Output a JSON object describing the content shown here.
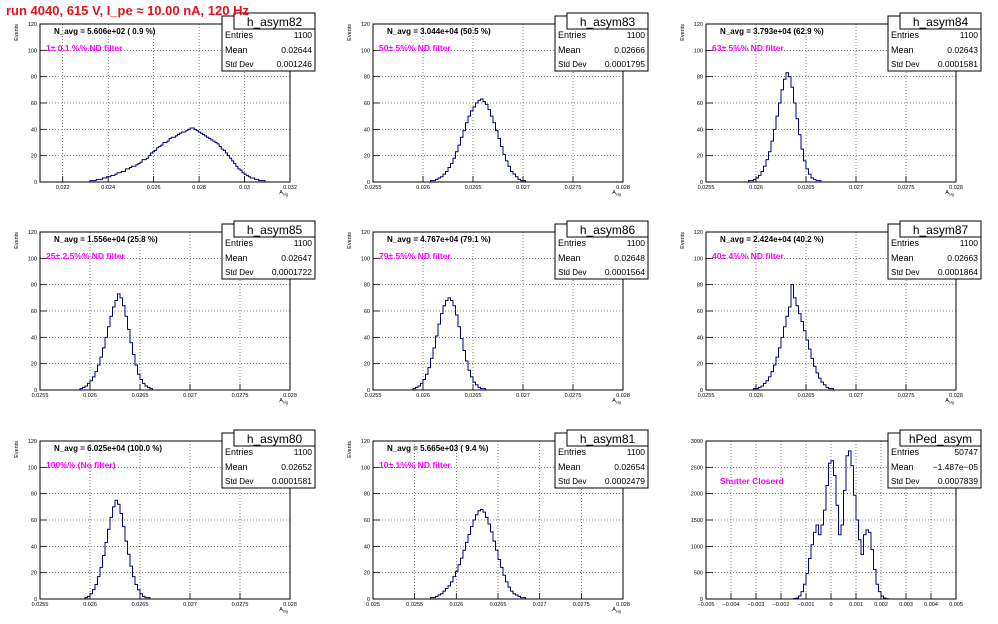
{
  "run_title": "run 4040,   615 V, I_pe ≈ 10.00 nA, 120 Hz",
  "colors": {
    "hist": "#00007a",
    "label": "#ff00ff",
    "title": "#e8101c"
  },
  "chart_data": [
    {
      "type": "bar",
      "name": "h_asym82",
      "ylabel": "Events",
      "xlabel": "A_sig",
      "navg": "N_avg = 5.606e+02 ( 0.9 %)",
      "filter": "1± 0.1 %% ND filter",
      "stats": {
        "entries": "1100",
        "mean": "0.02644",
        "stddev": "0.001246"
      },
      "stat_labels": [
        "Entries",
        "Mean",
        "Std Dev"
      ],
      "xlim": [
        0.0315,
        0.032
      ],
      "ylim": [
        0,
        120
      ],
      "xticks": [
        "0.022",
        "0.024",
        "0.026",
        "0.028",
        "0.03",
        "0.032"
      ],
      "xtick_vals": [
        0.022,
        0.024,
        0.026,
        0.028,
        0.03,
        0.032
      ],
      "yticks": [
        "0",
        "20",
        "40",
        "60",
        "80",
        "100",
        "120"
      ],
      "x_range": [
        0.021,
        0.032
      ],
      "values": [
        0,
        0,
        0,
        0,
        0,
        0,
        0,
        0,
        0,
        0,
        0,
        0,
        0,
        0,
        0,
        0,
        0,
        0,
        0,
        0,
        0,
        0,
        0,
        0,
        1,
        1,
        1,
        2,
        2,
        2,
        3,
        3,
        4,
        4,
        5,
        5,
        6,
        7,
        7,
        8,
        8,
        10,
        10,
        11,
        12,
        12,
        13,
        14,
        15,
        17,
        17,
        18,
        20,
        22,
        23,
        24,
        26,
        27,
        28,
        30,
        30,
        31,
        33,
        34,
        34,
        35,
        36,
        37,
        38,
        38,
        39,
        40,
        41,
        41,
        40,
        39,
        38,
        37,
        36,
        35,
        34,
        33,
        32,
        31,
        30,
        29,
        27,
        25,
        24,
        22,
        20,
        18,
        16,
        14,
        12,
        10,
        9,
        7,
        6,
        5,
        4,
        3,
        3,
        2,
        2,
        1,
        1,
        1,
        0,
        0,
        0,
        0,
        0,
        0,
        0,
        0,
        0,
        0,
        0,
        0
      ]
    },
    {
      "type": "bar",
      "name": "h_asym83",
      "ylabel": "Events",
      "xlabel": "A_sig",
      "navg": "N_avg = 3.044e+04 (50.5 %)",
      "filter": "50± 5%% ND filter",
      "stats": {
        "entries": "1100",
        "mean": "0.02666",
        "stddev": "0.0001795"
      },
      "stat_labels": [
        "Entries",
        "Mean",
        "Std Dev"
      ],
      "ylim": [
        0,
        120
      ],
      "xticks": [
        "0.0255",
        "0.026",
        "0.0265",
        "0.027",
        "0.0275",
        "0.028"
      ],
      "xtick_vals": [
        0.0255,
        0.026,
        0.0265,
        0.027,
        0.0275,
        0.028
      ],
      "yticks": [
        "0",
        "20",
        "40",
        "60",
        "80",
        "100",
        "120"
      ],
      "x_range": [
        0.0255,
        0.028
      ],
      "values": [
        0,
        0,
        0,
        0,
        0,
        0,
        0,
        0,
        0,
        0,
        0,
        0,
        0,
        0,
        0,
        0,
        0,
        0,
        0,
        0,
        0,
        0,
        0,
        1,
        1,
        2,
        3,
        4,
        6,
        8,
        11,
        14,
        18,
        23,
        28,
        34,
        39,
        45,
        50,
        54,
        57,
        60,
        62,
        63,
        61,
        59,
        55,
        50,
        45,
        39,
        33,
        27,
        21,
        16,
        12,
        8,
        6,
        4,
        2,
        1,
        1,
        0,
        0,
        0,
        0,
        0,
        0,
        0,
        0,
        0,
        0,
        0,
        0,
        0,
        0,
        0,
        0,
        0,
        0,
        0,
        0,
        0,
        0,
        0,
        0,
        0,
        0,
        0,
        0,
        0,
        0,
        0,
        0,
        0,
        0,
        0,
        0,
        0,
        0,
        0
      ]
    },
    {
      "type": "bar",
      "name": "h_asym84",
      "ylabel": "Events",
      "xlabel": "A_sig",
      "navg": "N_avg = 3.793e+04 (62.9 %)",
      "filter": "63± 5%% ND filter",
      "stats": {
        "entries": "1100",
        "mean": "0.02643",
        "stddev": "0.0001581"
      },
      "stat_labels": [
        "Entries",
        "Mean",
        "Std Dev"
      ],
      "ylim": [
        0,
        120
      ],
      "xticks": [
        "0.0255",
        "0.026",
        "0.0265",
        "0.027",
        "0.0275",
        "0.028"
      ],
      "xtick_vals": [
        0.0255,
        0.026,
        0.0265,
        0.027,
        0.0275,
        0.028
      ],
      "yticks": [
        "0",
        "20",
        "40",
        "60",
        "80",
        "100",
        "120"
      ],
      "x_range": [
        0.0255,
        0.028
      ],
      "values": [
        0,
        0,
        0,
        0,
        0,
        0,
        0,
        0,
        0,
        0,
        0,
        0,
        0,
        0,
        0,
        0,
        0,
        1,
        1,
        2,
        3,
        5,
        8,
        12,
        17,
        23,
        31,
        40,
        50,
        60,
        70,
        78,
        83,
        80,
        72,
        60,
        48,
        36,
        25,
        16,
        10,
        6,
        3,
        2,
        1,
        1,
        0,
        0,
        0,
        0,
        0,
        0,
        0,
        0,
        0,
        0,
        0,
        0,
        0,
        0,
        0,
        0,
        0,
        0,
        0,
        0,
        0,
        0,
        0,
        0,
        0,
        0,
        0,
        0,
        0,
        0,
        0,
        0,
        0,
        0,
        0,
        0,
        0,
        0,
        0,
        0,
        0,
        0,
        0,
        0,
        0,
        0,
        0,
        0,
        0,
        0,
        0,
        0,
        0,
        0
      ]
    },
    {
      "type": "bar",
      "name": "h_asym85",
      "ylabel": "Events",
      "xlabel": "A_sig",
      "navg": "N_avg = 1.556e+04 (25.8 %)",
      "filter": "25± 2.5%% ND filter",
      "stats": {
        "entries": "1100",
        "mean": "0.02647",
        "stddev": "0.0001722"
      },
      "stat_labels": [
        "Entries",
        "Mean",
        "Std Dev"
      ],
      "ylim": [
        0,
        120
      ],
      "xticks": [
        "0.0255",
        "0.026",
        "0.0265",
        "0.027",
        "0.0275",
        "0.028"
      ],
      "xtick_vals": [
        0.0255,
        0.026,
        0.0265,
        0.027,
        0.0275,
        0.028
      ],
      "yticks": [
        "0",
        "20",
        "40",
        "60",
        "80",
        "100",
        "120"
      ],
      "x_range": [
        0.0255,
        0.028
      ],
      "values": [
        0,
        0,
        0,
        0,
        0,
        0,
        0,
        0,
        0,
        0,
        0,
        0,
        0,
        0,
        0,
        0,
        1,
        2,
        3,
        5,
        7,
        10,
        14,
        19,
        25,
        32,
        40,
        48,
        56,
        63,
        68,
        73,
        70,
        64,
        56,
        46,
        36,
        27,
        19,
        12,
        8,
        5,
        3,
        2,
        1,
        0,
        0,
        0,
        0,
        0,
        0,
        0,
        0,
        0,
        0,
        0,
        0,
        0,
        0,
        0,
        0,
        0,
        0,
        0,
        0,
        0,
        0,
        0,
        0,
        0,
        0,
        0,
        0,
        0,
        0,
        0,
        0,
        0,
        0,
        0,
        0,
        0,
        0,
        0,
        0,
        0,
        0,
        0,
        0,
        0,
        0,
        0,
        0,
        0,
        0,
        0,
        0,
        0,
        0,
        0
      ]
    },
    {
      "type": "bar",
      "name": "h_asym86",
      "ylabel": "Events",
      "xlabel": "A_sig",
      "navg": "N_avg = 4.767e+04 (79.1 %)",
      "filter": "79± 5%% ND filter",
      "stats": {
        "entries": "1100",
        "mean": "0.02648",
        "stddev": "0.0001564"
      },
      "stat_labels": [
        "Entries",
        "Mean",
        "Std Dev"
      ],
      "ylim": [
        0,
        120
      ],
      "xticks": [
        "0.0255",
        "0.026",
        "0.0265",
        "0.027",
        "0.0275",
        "0.028"
      ],
      "xtick_vals": [
        0.0255,
        0.026,
        0.0265,
        0.027,
        0.0275,
        0.028
      ],
      "yticks": [
        "0",
        "20",
        "40",
        "60",
        "80",
        "100",
        "120"
      ],
      "x_range": [
        0.0255,
        0.028
      ],
      "values": [
        0,
        0,
        0,
        0,
        0,
        0,
        0,
        0,
        0,
        0,
        0,
        0,
        0,
        0,
        0,
        0,
        1,
        2,
        3,
        5,
        8,
        12,
        17,
        24,
        32,
        41,
        50,
        58,
        64,
        68,
        70,
        68,
        64,
        57,
        48,
        39,
        30,
        22,
        15,
        10,
        6,
        4,
        2,
        1,
        1,
        0,
        0,
        0,
        0,
        0,
        0,
        0,
        0,
        0,
        0,
        0,
        0,
        0,
        0,
        0,
        0,
        0,
        0,
        0,
        0,
        0,
        0,
        0,
        0,
        0,
        0,
        0,
        0,
        0,
        0,
        0,
        0,
        0,
        0,
        0,
        0,
        0,
        0,
        0,
        0,
        0,
        0,
        0,
        0,
        0,
        0,
        0,
        0,
        0,
        0,
        0,
        0,
        0,
        0,
        0
      ]
    },
    {
      "type": "bar",
      "name": "h_asym87",
      "ylabel": "Events",
      "xlabel": "A_sig",
      "navg": "N_avg = 2.424e+04 (40.2 %)",
      "filter": "40± 4%% ND filter",
      "stats": {
        "entries": "1100",
        "mean": "0.02663",
        "stddev": "0.0001864"
      },
      "stat_labels": [
        "Entries",
        "Mean",
        "Std Dev"
      ],
      "ylim": [
        0,
        120
      ],
      "xticks": [
        "0.0255",
        "0.026",
        "0.0265",
        "0.027",
        "0.0275",
        "0.028"
      ],
      "xtick_vals": [
        0.0255,
        0.026,
        0.0265,
        0.027,
        0.0275,
        0.028
      ],
      "yticks": [
        "0",
        "20",
        "40",
        "60",
        "80",
        "100",
        "120"
      ],
      "x_range": [
        0.0255,
        0.028
      ],
      "values": [
        0,
        0,
        0,
        0,
        0,
        0,
        0,
        0,
        0,
        0,
        0,
        0,
        0,
        0,
        0,
        0,
        0,
        0,
        0,
        1,
        1,
        2,
        3,
        5,
        7,
        10,
        14,
        19,
        25,
        32,
        40,
        48,
        56,
        63,
        80,
        70,
        64,
        58,
        52,
        45,
        38,
        31,
        24,
        18,
        13,
        9,
        6,
        4,
        2,
        1,
        1,
        0,
        0,
        0,
        0,
        0,
        0,
        0,
        0,
        0,
        0,
        0,
        0,
        0,
        0,
        0,
        0,
        0,
        0,
        0,
        0,
        0,
        0,
        0,
        0,
        0,
        0,
        0,
        0,
        0,
        0,
        0,
        0,
        0,
        0,
        0,
        0,
        0,
        0,
        0,
        0,
        0,
        0,
        0,
        0,
        0,
        0,
        0,
        0,
        0
      ]
    },
    {
      "type": "bar",
      "name": "h_asym80",
      "ylabel": "Events",
      "xlabel": "A_sig",
      "navg": "N_avg = 6.025e+04 (100.0 %)",
      "filter": "100%% (No filter)",
      "stats": {
        "entries": "1100",
        "mean": "0.02652",
        "stddev": "0.0001581"
      },
      "stat_labels": [
        "Entries",
        "Mean",
        "Std Dev"
      ],
      "ylim": [
        0,
        120
      ],
      "xticks": [
        "0.0255",
        "0.026",
        "0.0265",
        "0.027",
        "0.0275",
        "0.028"
      ],
      "xtick_vals": [
        0.0255,
        0.026,
        0.0265,
        0.027,
        0.0275,
        0.028
      ],
      "yticks": [
        "0",
        "20",
        "40",
        "60",
        "80",
        "100",
        "120"
      ],
      "x_range": [
        0.0255,
        0.028
      ],
      "values": [
        0,
        0,
        0,
        0,
        0,
        0,
        0,
        0,
        0,
        0,
        0,
        0,
        0,
        0,
        0,
        0,
        0,
        0,
        1,
        2,
        4,
        7,
        11,
        17,
        24,
        33,
        43,
        53,
        62,
        70,
        75,
        72,
        65,
        55,
        44,
        34,
        25,
        17,
        11,
        7,
        4,
        2,
        1,
        1,
        0,
        0,
        0,
        0,
        0,
        0,
        0,
        0,
        0,
        0,
        0,
        0,
        0,
        0,
        0,
        0,
        0,
        0,
        0,
        0,
        0,
        0,
        0,
        0,
        0,
        0,
        0,
        0,
        0,
        0,
        0,
        0,
        0,
        0,
        0,
        0,
        0,
        0,
        0,
        0,
        0,
        0,
        0,
        0,
        0,
        0,
        0,
        0,
        0,
        0,
        0,
        0,
        0,
        0,
        0,
        0
      ]
    },
    {
      "type": "bar",
      "name": "h_asym81",
      "ylabel": "Events",
      "xlabel": "A_sig",
      "navg": "N_avg = 5.665e+03 ( 9.4 %)",
      "filter": "10± 1%% ND filter",
      "stats": {
        "entries": "1100",
        "mean": "0.02654",
        "stddev": "0.0002479"
      },
      "stat_labels": [
        "Entries",
        "Mean",
        "Std Dev"
      ],
      "ylim": [
        0,
        120
      ],
      "xticks": [
        "0.025",
        "0.0255",
        "0.026",
        "0.0265",
        "0.027",
        "0.0275",
        "0.028"
      ],
      "xtick_vals": [
        0.025,
        0.0255,
        0.026,
        0.0265,
        0.027,
        0.0275,
        0.028
      ],
      "yticks": [
        "0",
        "20",
        "40",
        "60",
        "80",
        "100",
        "120"
      ],
      "x_range": [
        0.025,
        0.028
      ],
      "values": [
        0,
        0,
        0,
        0,
        0,
        0,
        0,
        0,
        0,
        0,
        0,
        0,
        0,
        0,
        0,
        0,
        0,
        0,
        0,
        0,
        0,
        0,
        0,
        1,
        1,
        2,
        3,
        4,
        6,
        8,
        10,
        13,
        17,
        21,
        26,
        31,
        37,
        43,
        49,
        55,
        60,
        64,
        67,
        68,
        66,
        62,
        57,
        51,
        44,
        37,
        30,
        24,
        18,
        13,
        9,
        6,
        4,
        3,
        2,
        1,
        1,
        0,
        0,
        0,
        0,
        0,
        0,
        0,
        0,
        0,
        0,
        0,
        0,
        0,
        0,
        0,
        0,
        0,
        0,
        0,
        0,
        0,
        0,
        0,
        0,
        0,
        0,
        0,
        0,
        0,
        0,
        0,
        0,
        0,
        0,
        0,
        0,
        0,
        0,
        0
      ]
    },
    {
      "type": "bar",
      "name": "hPed_asym",
      "ylabel": "",
      "xlabel": "",
      "navg": "",
      "filter": "Shutter Closerd",
      "stats": {
        "entries": "50747",
        "mean": "−1.487e−05",
        "stddev": "0.0007839"
      },
      "stat_labels": [
        "Entries",
        "Mean",
        "Std Dev"
      ],
      "ylim": [
        0,
        3200
      ],
      "xticks": [
        "−0.005",
        "−0.004",
        "−0.003",
        "−0.002",
        "−0.001",
        "0",
        "0.001",
        "0.002",
        "0.003",
        "0.004",
        "0.005"
      ],
      "xtick_vals": [
        -0.005,
        -0.004,
        -0.003,
        -0.002,
        -0.001,
        0,
        0.001,
        0.002,
        0.003,
        0.004,
        0.005
      ],
      "yticks": [
        "0",
        "500",
        "1000",
        "1500",
        "2000",
        "2500",
        "3000"
      ],
      "x_range": [
        -0.005,
        0.005
      ],
      "values": [
        0,
        0,
        0,
        0,
        0,
        0,
        0,
        0,
        0,
        0,
        0,
        0,
        0,
        0,
        0,
        0,
        0,
        0,
        0,
        0,
        0,
        0,
        0,
        0,
        0,
        0,
        0,
        0,
        0,
        0,
        0,
        0,
        0,
        0,
        0,
        10,
        20,
        60,
        150,
        300,
        520,
        820,
        1100,
        1350,
        1500,
        1300,
        1500,
        1800,
        2300,
        2750,
        2800,
        2500,
        1900,
        1300,
        1500,
        2200,
        2900,
        3000,
        2700,
        2100,
        1600,
        1200,
        900,
        1300,
        1400,
        1350,
        1000,
        600,
        300,
        150,
        60,
        20,
        5,
        0,
        0,
        0,
        0,
        0,
        0,
        0,
        0,
        0,
        0,
        0,
        0,
        0,
        0,
        0,
        0,
        0,
        0,
        0,
        0,
        0,
        0,
        0,
        0,
        0,
        0,
        0
      ]
    }
  ]
}
